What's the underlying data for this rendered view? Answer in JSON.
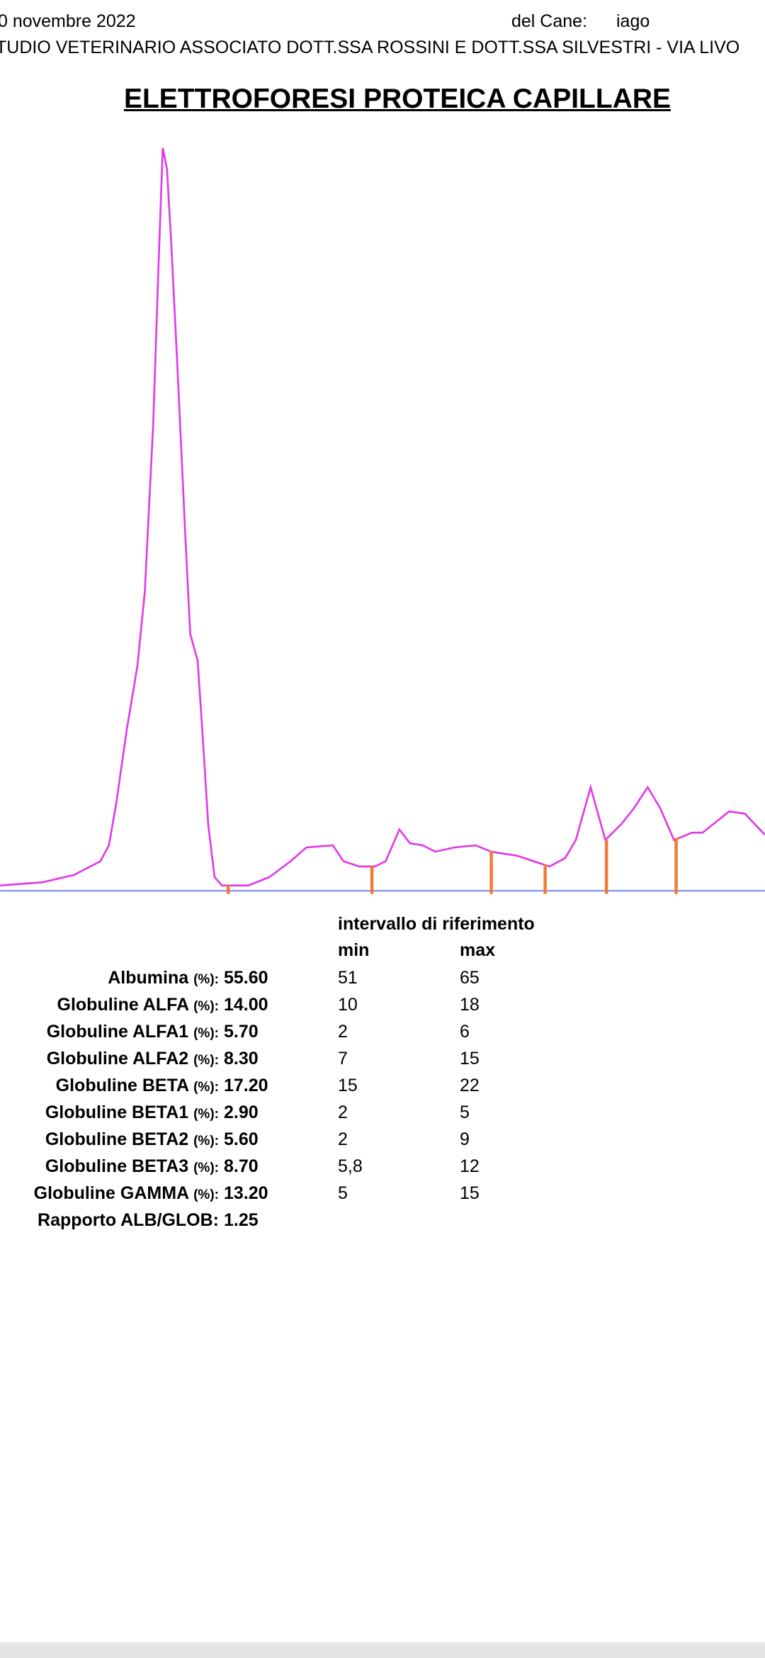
{
  "header": {
    "date": "0 novembre 2022",
    "dog_label": "del Cane:",
    "dog_name": "iago",
    "clinic": "TUDIO VETERINARIO ASSOCIATO DOTT.SSA ROSSINI E DOTT.SSA SILVESTRI - VIA LIVO"
  },
  "title": "ELETTROFORESI PROTEICA CAPILLARE",
  "table": {
    "reference_header": "intervallo di riferimento",
    "min_header": "min",
    "max_header": "max",
    "rows": [
      {
        "name": "Albumina",
        "unit": "(%):",
        "value": "55.60",
        "min": "51",
        "max": "65"
      },
      {
        "name": "Globuline ALFA",
        "unit": "(%):",
        "value": "14.00",
        "min": "10",
        "max": "18"
      },
      {
        "name": "Globuline ALFA1",
        "unit": "(%):",
        "value": "5.70",
        "min": "2",
        "max": "6"
      },
      {
        "name": "Globuline ALFA2",
        "unit": "(%):",
        "value": "8.30",
        "min": "7",
        "max": "15"
      },
      {
        "name": "Globuline BETA",
        "unit": "(%):",
        "value": "17.20",
        "min": "15",
        "max": "22"
      },
      {
        "name": "Globuline BETA1",
        "unit": "(%):",
        "value": "2.90",
        "min": "2",
        "max": "5"
      },
      {
        "name": "Globuline BETA2",
        "unit": "(%):",
        "value": "5.60",
        "min": "2",
        "max": "9"
      },
      {
        "name": "Globuline BETA3",
        "unit": "(%):",
        "value": "8.70",
        "min": "5,8",
        "max": "12"
      },
      {
        "name": "Globuline GAMMA",
        "unit": "(%):",
        "value": "13.20",
        "min": "5",
        "max": "15"
      },
      {
        "name": "Rapporto ALB/GLOB:",
        "value": "1.25"
      }
    ]
  }
}
